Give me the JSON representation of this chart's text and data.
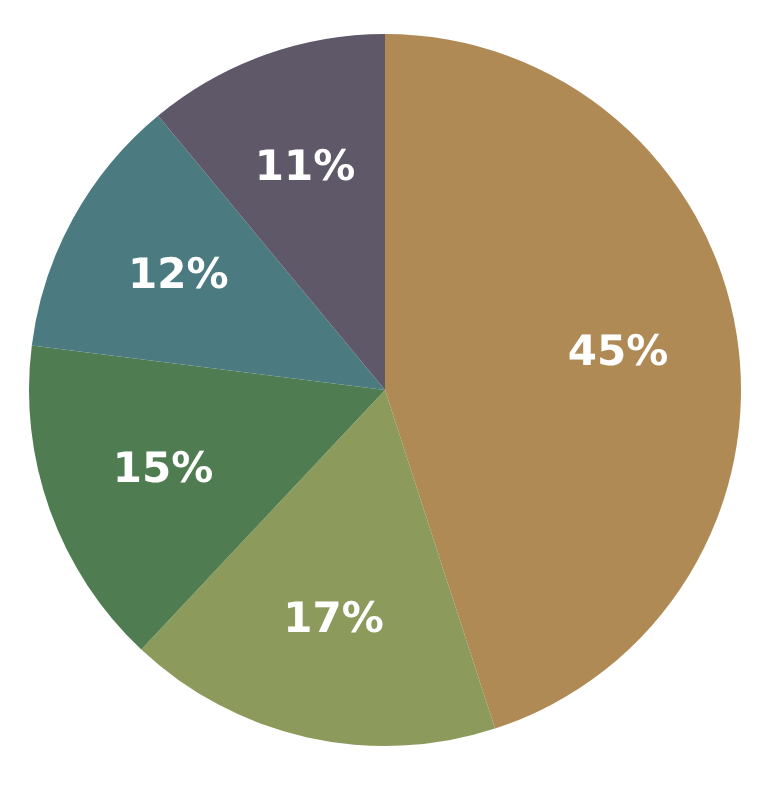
{
  "chart_data": {
    "type": "pie",
    "categories": [
      null,
      null,
      null,
      null,
      null
    ],
    "values": [
      45,
      17,
      15,
      12,
      11
    ],
    "colors": [
      "#b08a54",
      "#8c9a5c",
      "#4f7c50",
      "#4b7a80",
      "#5f5869"
    ],
    "value_labels": [
      "45%",
      "17%",
      "15%",
      "12%",
      "11%"
    ],
    "legend": false
  }
}
